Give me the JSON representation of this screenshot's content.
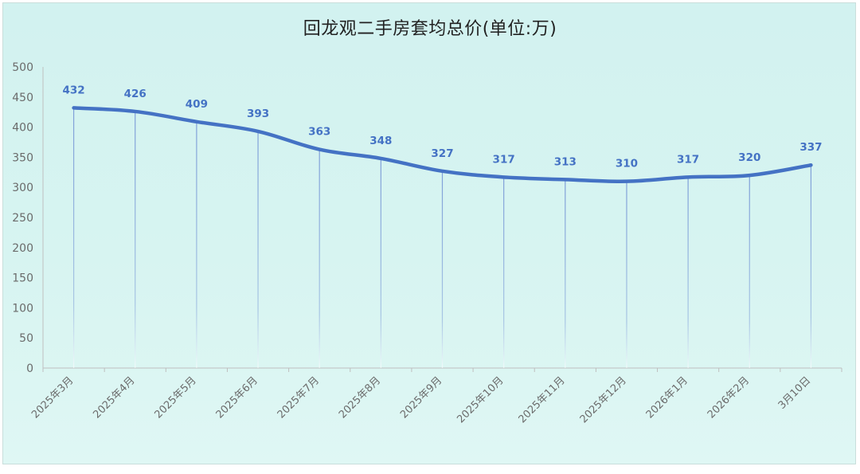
{
  "chart_data": {
    "type": "line",
    "title": "回龙观二手房套均总价(单位:万)",
    "categories": [
      "2025年3月",
      "2025年4月",
      "2025年5月",
      "2025年6月",
      "2025年7月",
      "2025年8月",
      "2025年9月",
      "2025年10月",
      "2025年11月",
      "2025年12月",
      "2026年1月",
      "2026年2月",
      "3月10日"
    ],
    "values": [
      432,
      426,
      409,
      393,
      363,
      348,
      327,
      317,
      313,
      310,
      317,
      320,
      337
    ],
    "ylim": [
      0,
      500
    ],
    "yticks": [
      0,
      50,
      100,
      150,
      200,
      250,
      300,
      350,
      400,
      450,
      500
    ],
    "smooth": true,
    "drop_lines": true,
    "data_labels": true,
    "grid": false,
    "legend": "none",
    "colors": {
      "line": "#4472c4",
      "data_label": "#4472c4",
      "drop_line": "#7f9fd8",
      "axis": "#bfbfbf",
      "background": "#d4f3f1"
    }
  }
}
